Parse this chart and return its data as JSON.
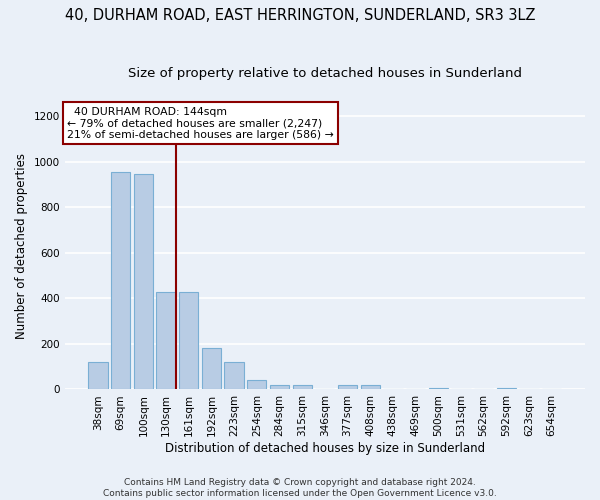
{
  "title": "40, DURHAM ROAD, EAST HERRINGTON, SUNDERLAND, SR3 3LZ",
  "subtitle": "Size of property relative to detached houses in Sunderland",
  "xlabel": "Distribution of detached houses by size in Sunderland",
  "ylabel": "Number of detached properties",
  "categories": [
    "38sqm",
    "69sqm",
    "100sqm",
    "130sqm",
    "161sqm",
    "192sqm",
    "223sqm",
    "254sqm",
    "284sqm",
    "315sqm",
    "346sqm",
    "377sqm",
    "408sqm",
    "438sqm",
    "469sqm",
    "500sqm",
    "531sqm",
    "562sqm",
    "592sqm",
    "623sqm",
    "654sqm"
  ],
  "values": [
    120,
    955,
    948,
    428,
    428,
    183,
    120,
    42,
    20,
    20,
    0,
    20,
    20,
    0,
    0,
    8,
    0,
    0,
    8,
    0,
    0
  ],
  "bar_color": "#b8cce4",
  "bar_edgecolor": "#7aafd4",
  "vline_color": "#8b0000",
  "annotation_text": "  40 DURHAM ROAD: 144sqm\n← 79% of detached houses are smaller (2,247)\n21% of semi-detached houses are larger (586) →",
  "annotation_box_color": "#ffffff",
  "annotation_box_edgecolor": "#8b0000",
  "ylim": [
    0,
    1260
  ],
  "yticks": [
    0,
    200,
    400,
    600,
    800,
    1000,
    1200
  ],
  "footer": "Contains HM Land Registry data © Crown copyright and database right 2024.\nContains public sector information licensed under the Open Government Licence v3.0.",
  "bg_color": "#eaf0f8",
  "grid_color": "#ffffff",
  "title_fontsize": 10.5,
  "subtitle_fontsize": 9.5,
  "axis_label_fontsize": 8.5,
  "tick_fontsize": 7.5,
  "footer_fontsize": 6.5
}
